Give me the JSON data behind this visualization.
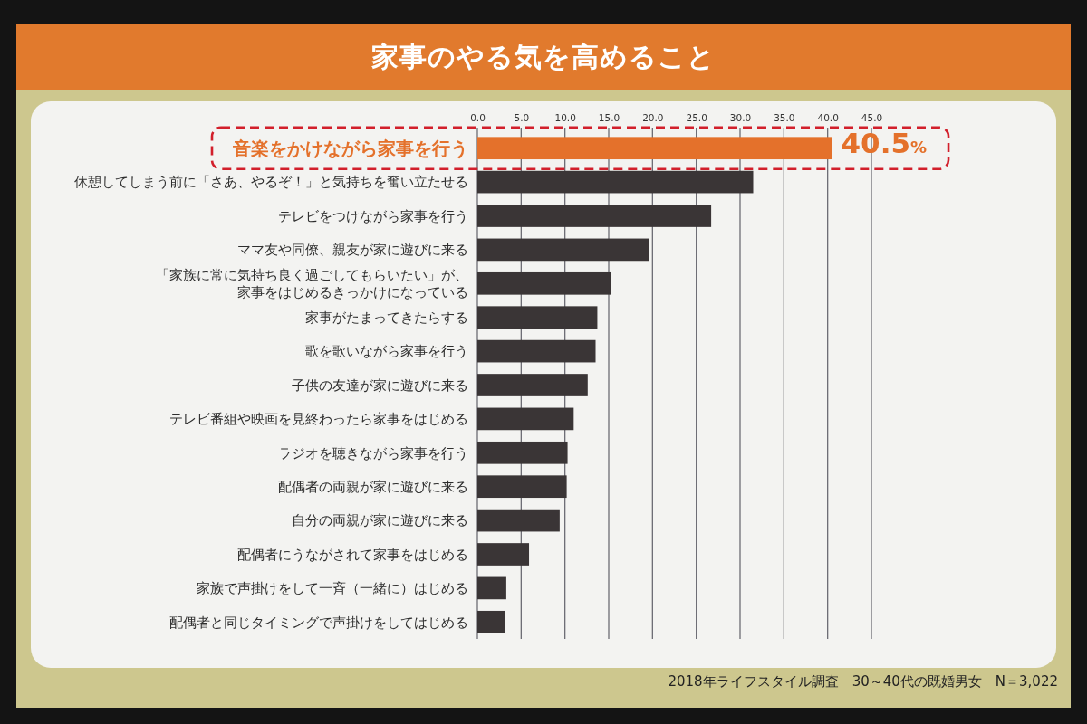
{
  "chart_data": {
    "type": "bar",
    "orientation": "horizontal",
    "title": "家事のやる気を高めること",
    "categories": [
      "音楽をかけながら家事を行う",
      "休憩してしまう前に「さあ、やるぞ！」と気持ちを奮い立たせる",
      "テレビをつけながら家事を行う",
      "ママ友や同僚、親友が家に遊びに来る",
      "「家族に常に気持ち良く過ごしてもらいたい」が、家事をはじめるきっかけになっている",
      "家事がたまってきたらする",
      "歌を歌いながら家事を行う",
      "子供の友達が家に遊びに来る",
      "テレビ番組や映画を見終わったら家事をはじめる",
      "ラジオを聴きながら家事を行う",
      "配偶者の両親が家に遊びに来る",
      "自分の両親が家に遊びに来る",
      "配偶者にうながされて家事をはじめる",
      "家族で声掛けをして一斉（一緒に）はじめる",
      "配偶者と同じタイミングで声掛けをしてはじめる"
    ],
    "values": [
      40.5,
      31.5,
      26.7,
      19.6,
      15.3,
      13.7,
      13.5,
      12.6,
      11.0,
      10.3,
      10.2,
      9.4,
      5.9,
      3.3,
      3.2
    ],
    "colors": [
      "#e4712b",
      "#3a3536",
      "#3a3536",
      "#3a3536",
      "#3a3536",
      "#3a3536",
      "#3a3536",
      "#3a3536",
      "#3a3536",
      "#3a3536",
      "#3a3536",
      "#3a3536",
      "#3a3536",
      "#3a3536",
      "#3a3536"
    ],
    "value_labels": [
      "40.5%",
      null,
      null,
      null,
      null,
      null,
      null,
      null,
      null,
      null,
      null,
      null,
      null,
      null,
      null
    ],
    "xlim": [
      0,
      45
    ],
    "xticks": [
      {
        "value": 0,
        "label": "0.0"
      },
      {
        "value": 5,
        "label": "5.0"
      },
      {
        "value": 10,
        "label": "10.0"
      },
      {
        "value": 15,
        "label": "15.0"
      },
      {
        "value": 20,
        "label": "20.0"
      },
      {
        "value": 25,
        "label": "25.0"
      },
      {
        "value": 30,
        "label": "30.0"
      },
      {
        "value": 35,
        "label": "35.0"
      },
      {
        "value": 40,
        "label": "40.0"
      },
      {
        "value": 45,
        "label": "45.0"
      }
    ],
    "grid": "x",
    "annotations": [
      "2018年ライフスタイル調査　30～40代の既婚男女　N＝3,022"
    ]
  }
}
